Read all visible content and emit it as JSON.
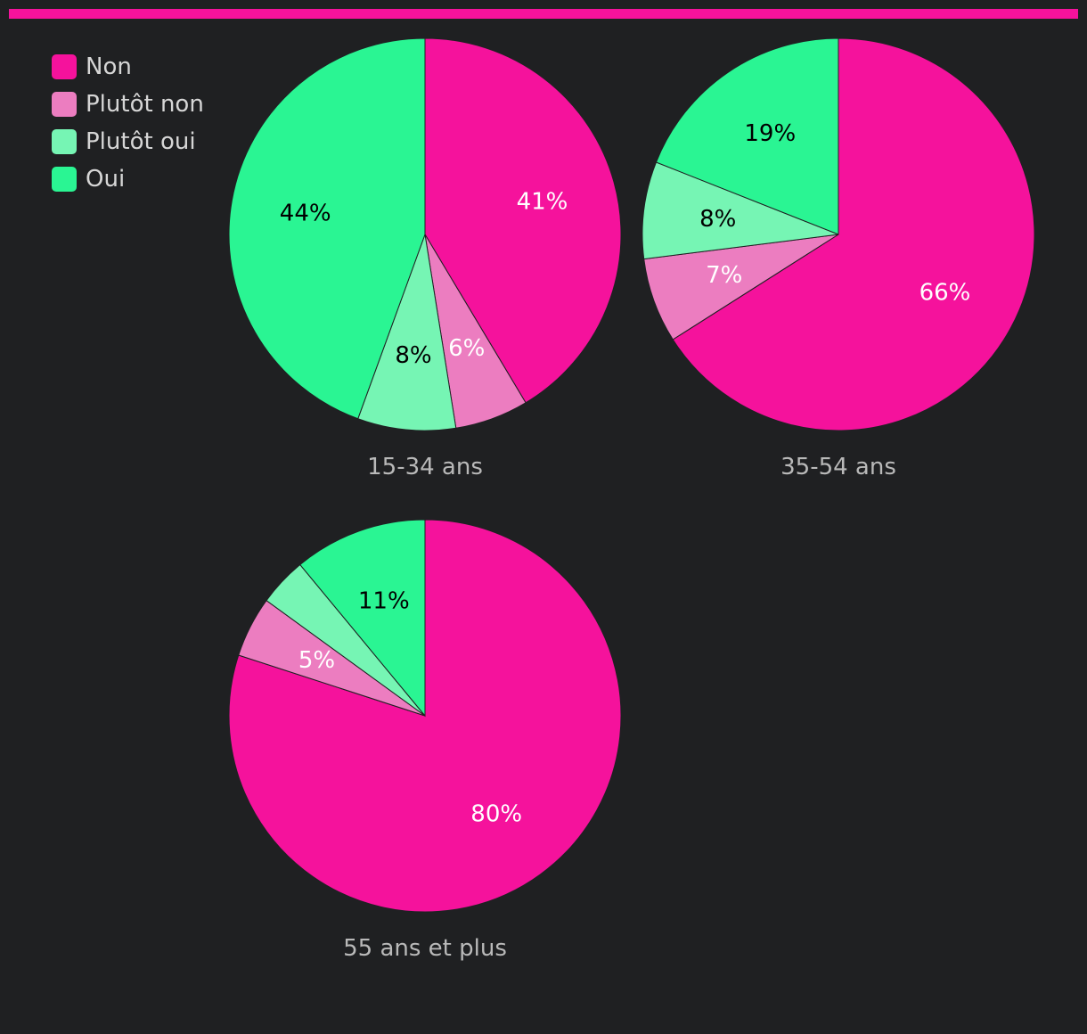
{
  "colors": {
    "accent_bar": "#f5129c",
    "background": "#1f2022"
  },
  "legend": [
    {
      "label": "Non",
      "color": "#f5129c"
    },
    {
      "label": "Plutôt non",
      "color": "#ec7dc0"
    },
    {
      "label": "Plutôt oui",
      "color": "#76f5b4"
    },
    {
      "label": "Oui",
      "color": "#2af593"
    }
  ],
  "chart_data": [
    {
      "type": "pie",
      "title": "15-34 ans",
      "slices": [
        {
          "label": "Non",
          "value": 41,
          "display": "41%",
          "color": "#f5129c",
          "text_color": "#ffffff"
        },
        {
          "label": "Plutôt non",
          "value": 6,
          "display": "6%",
          "color": "#ec7dc0",
          "text_color": "#ffffff"
        },
        {
          "label": "Plutôt oui",
          "value": 8,
          "display": "8%",
          "color": "#76f5b4",
          "text_color": "#000000"
        },
        {
          "label": "Oui",
          "value": 44,
          "display": "44%",
          "color": "#2af593",
          "text_color": "#000000"
        }
      ]
    },
    {
      "type": "pie",
      "title": "35-54 ans",
      "slices": [
        {
          "label": "Non",
          "value": 66,
          "display": "66%",
          "color": "#f5129c",
          "text_color": "#ffffff"
        },
        {
          "label": "Plutôt non",
          "value": 7,
          "display": "7%",
          "color": "#ec7dc0",
          "text_color": "#ffffff"
        },
        {
          "label": "Plutôt oui",
          "value": 8,
          "display": "8%",
          "color": "#76f5b4",
          "text_color": "#000000"
        },
        {
          "label": "Oui",
          "value": 19,
          "display": "19%",
          "color": "#2af593",
          "text_color": "#000000"
        }
      ]
    },
    {
      "type": "pie",
      "title": "55 ans et plus",
      "slices": [
        {
          "label": "Non",
          "value": 80,
          "display": "80%",
          "color": "#f5129c",
          "text_color": "#ffffff"
        },
        {
          "label": "Plutôt non",
          "value": 5,
          "display": "5%",
          "color": "#ec7dc0",
          "text_color": "#ffffff"
        },
        {
          "label": "Plutôt oui",
          "value": 4,
          "display": "",
          "color": "#76f5b4",
          "text_color": "#000000"
        },
        {
          "label": "Oui",
          "value": 11,
          "display": "11%",
          "color": "#2af593",
          "text_color": "#000000"
        }
      ]
    }
  ]
}
